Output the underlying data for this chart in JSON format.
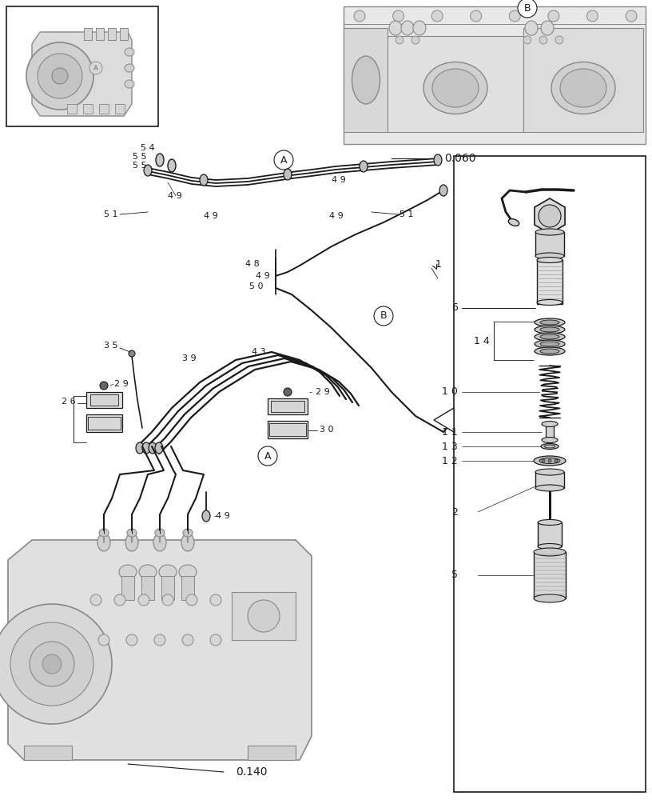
{
  "bg_color": "#ffffff",
  "lc": "#1a1a1a",
  "gc": "#888888",
  "lgc": "#bbbbbb",
  "figsize": [
    8.16,
    10.0
  ],
  "dpi": 100,
  "labels": {
    "ref_0060": "0.060",
    "ref_0140": "0.140",
    "n1": "1",
    "n2": "2",
    "n5": "5",
    "n6": "6",
    "n10": "1 0",
    "n11": "1 1",
    "n12": "1 2",
    "n13": "1 3",
    "n14": "1 4",
    "n26": "2 6",
    "n29a": "2 9",
    "n29b": "2 9",
    "n30": "3 0",
    "n35": "3 5",
    "n39": "3 9",
    "n43": "4 3",
    "n48": "4 8",
    "n49a": "4 9",
    "n49b": "4 9",
    "n49c": "4 9",
    "n49d": "4 9",
    "n49e": "4 9",
    "n49f": "4 9",
    "n50": "5 0",
    "n51a": "5 1",
    "n51b": "5 1",
    "n54": "5 4",
    "n55a": "5 5",
    "n55b": "5 5"
  }
}
